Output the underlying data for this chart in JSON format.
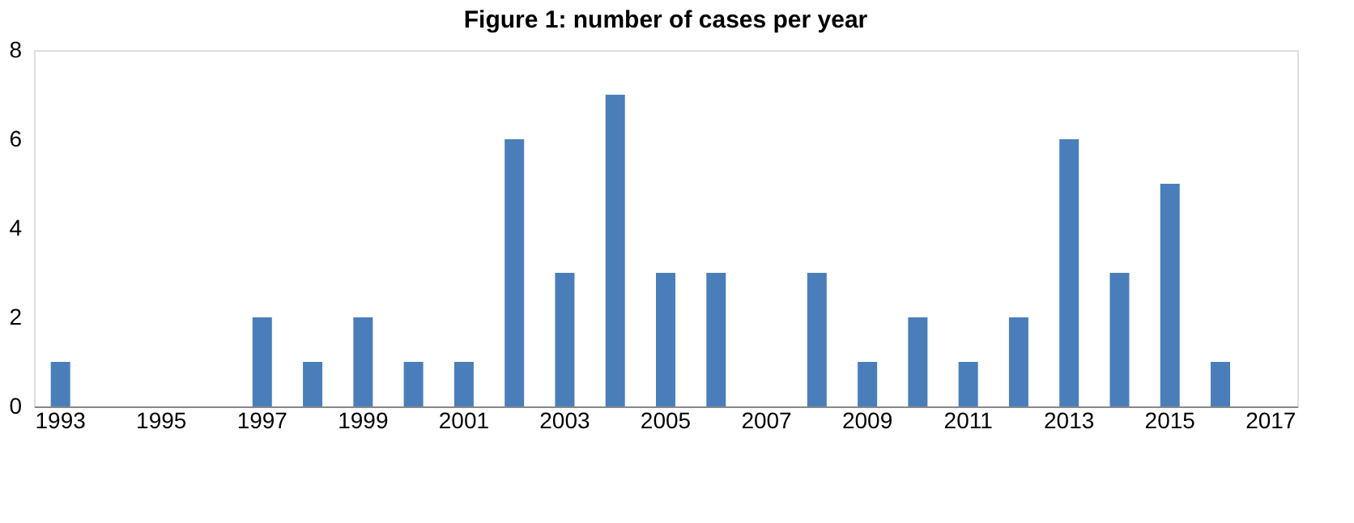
{
  "chart_data": {
    "type": "bar",
    "title": "Figure 1:  number of cases per year",
    "categories": [
      "1993",
      null,
      "1995",
      null,
      "1997",
      null,
      "1999",
      null,
      "2001",
      null,
      "2003",
      null,
      "2005",
      null,
      "2007",
      null,
      "2009",
      null,
      "2011",
      null,
      "2013",
      null,
      "2015",
      null,
      "2017"
    ],
    "values": [
      1,
      0,
      0,
      0,
      2,
      1,
      2,
      1,
      1,
      6,
      3,
      7,
      3,
      3,
      0,
      3,
      1,
      2,
      1,
      2,
      6,
      3,
      5,
      1,
      0
    ],
    "color": "#4a7ebb",
    "ylim": [
      0,
      8
    ],
    "yticks": [
      0,
      2,
      4,
      6,
      8
    ],
    "grid": false
  }
}
